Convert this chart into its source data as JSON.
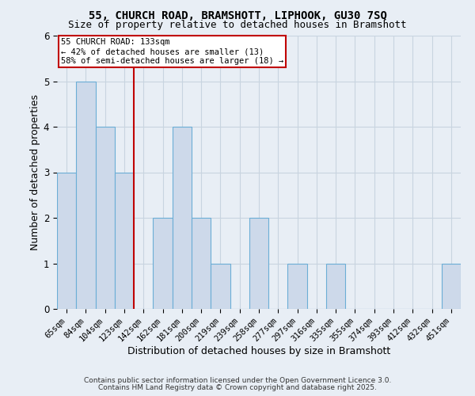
{
  "title1": "55, CHURCH ROAD, BRAMSHOTT, LIPHOOK, GU30 7SQ",
  "title2": "Size of property relative to detached houses in Bramshott",
  "xlabel": "Distribution of detached houses by size in Bramshott",
  "ylabel": "Number of detached properties",
  "categories": [
    "65sqm",
    "84sqm",
    "104sqm",
    "123sqm",
    "142sqm",
    "162sqm",
    "181sqm",
    "200sqm",
    "219sqm",
    "239sqm",
    "258sqm",
    "277sqm",
    "297sqm",
    "316sqm",
    "335sqm",
    "355sqm",
    "374sqm",
    "393sqm",
    "412sqm",
    "432sqm",
    "451sqm"
  ],
  "values": [
    3,
    5,
    4,
    3,
    0,
    2,
    4,
    2,
    1,
    0,
    2,
    0,
    1,
    0,
    1,
    0,
    0,
    0,
    0,
    0,
    1
  ],
  "bar_color": "#cdd9ea",
  "bar_edge_color": "#6baed6",
  "grid_color": "#c8d4e0",
  "background_color": "#e8eef5",
  "annotation_text": "55 CHURCH ROAD: 133sqm\n← 42% of detached houses are smaller (13)\n58% of semi-detached houses are larger (18) →",
  "annotation_box_color": "white",
  "annotation_box_edge_color": "#c00000",
  "vline_color": "#c00000",
  "vline_x": 3.5,
  "ylim_max": 6,
  "yticks": [
    0,
    1,
    2,
    3,
    4,
    5,
    6
  ],
  "footer_text1": "Contains HM Land Registry data © Crown copyright and database right 2025.",
  "footer_text2": "Contains public sector information licensed under the Open Government Licence 3.0.",
  "title_fontsize": 10,
  "subtitle_fontsize": 9,
  "tick_fontsize": 7.5,
  "ylabel_fontsize": 9,
  "xlabel_fontsize": 9,
  "footer_fontsize": 6.5
}
